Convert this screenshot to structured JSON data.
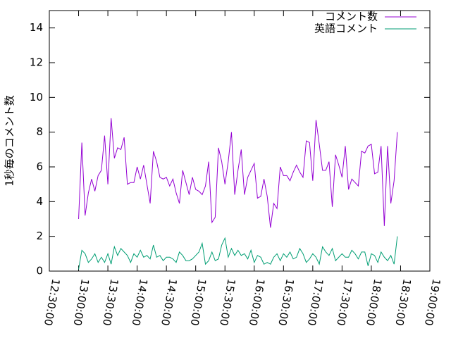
{
  "chart_data": {
    "type": "line",
    "ylabel": "1秒毎のコメント数",
    "x": [
      "13:00:00",
      "13:03:20",
      "13:06:40",
      "13:10:00",
      "13:13:20",
      "13:16:40",
      "13:20:00",
      "13:23:20",
      "13:26:40",
      "13:30:00",
      "13:33:20",
      "13:36:40",
      "13:40:00",
      "13:43:20",
      "13:46:40",
      "13:50:00",
      "13:53:20",
      "13:56:40",
      "14:00:00",
      "14:03:20",
      "14:06:40",
      "14:10:00",
      "14:13:20",
      "14:16:40",
      "14:20:00",
      "14:23:20",
      "14:26:40",
      "14:30:00",
      "14:33:20",
      "14:36:40",
      "14:40:00",
      "14:43:20",
      "14:46:40",
      "14:50:00",
      "14:53:20",
      "14:56:40",
      "15:00:00",
      "15:03:20",
      "15:06:40",
      "15:10:00",
      "15:13:20",
      "15:16:40",
      "15:20:00",
      "15:23:20",
      "15:26:40",
      "15:30:00",
      "15:33:20",
      "15:36:40",
      "15:40:00",
      "15:43:20",
      "15:46:40",
      "15:50:00",
      "15:53:20",
      "15:56:40",
      "16:00:00",
      "16:03:20",
      "16:06:40",
      "16:10:00",
      "16:13:20",
      "16:16:40",
      "16:20:00",
      "16:23:20",
      "16:26:40",
      "16:30:00",
      "16:33:20",
      "16:36:40",
      "16:40:00",
      "16:43:20",
      "16:46:40",
      "16:50:00",
      "16:53:20",
      "16:56:40",
      "17:00:00",
      "17:03:20",
      "17:06:40",
      "17:10:00",
      "17:13:20",
      "17:16:40",
      "17:20:00",
      "17:23:20",
      "17:26:40",
      "17:30:00",
      "17:33:20",
      "17:36:40",
      "17:40:00",
      "17:43:20",
      "17:46:40",
      "17:50:00",
      "17:53:20",
      "17:56:40",
      "18:00:00",
      "18:03:20",
      "18:06:40",
      "18:10:00",
      "18:13:20",
      "18:16:40",
      "18:20:00",
      "18:23:20",
      "18:26:40"
    ],
    "series": [
      {
        "name": "コメント数",
        "color": "#9400d3",
        "values": [
          3.0,
          7.4,
          3.2,
          4.5,
          5.3,
          4.6,
          5.5,
          5.8,
          7.8,
          5.0,
          8.8,
          6.5,
          7.1,
          7.0,
          7.7,
          5.0,
          5.1,
          5.1,
          6.0,
          5.3,
          6.1,
          5.0,
          3.9,
          6.9,
          6.3,
          5.4,
          5.3,
          5.4,
          4.9,
          5.3,
          4.5,
          3.9,
          5.8,
          5.1,
          4.4,
          5.4,
          4.7,
          4.6,
          4.4,
          4.9,
          6.3,
          2.8,
          3.1,
          7.1,
          6.3,
          5.0,
          6.3,
          8.0,
          4.4,
          5.8,
          7.0,
          4.4,
          5.4,
          5.8,
          6.2,
          4.2,
          4.3,
          5.3,
          4.3,
          2.5,
          3.9,
          3.6,
          6.0,
          5.5,
          5.5,
          5.2,
          5.7,
          6.1,
          5.7,
          5.4,
          7.5,
          7.4,
          5.2,
          8.7,
          7.3,
          5.8,
          5.8,
          6.3,
          3.7,
          6.7,
          6.1,
          5.4,
          7.2,
          4.7,
          5.3,
          5.1,
          4.9,
          6.9,
          6.8,
          7.2,
          7.3,
          5.6,
          5.7,
          7.2,
          2.6,
          7.2,
          3.9,
          5.2,
          8.0
        ]
      },
      {
        "name": "英語コメント",
        "color": "#009e73",
        "values": [
          0.1,
          1.2,
          1.0,
          0.5,
          0.7,
          1.0,
          0.5,
          0.8,
          0.5,
          1.0,
          0.4,
          1.4,
          0.9,
          1.3,
          1.1,
          0.9,
          0.5,
          1.0,
          0.8,
          1.2,
          0.8,
          0.9,
          0.7,
          1.5,
          0.8,
          0.9,
          0.6,
          0.8,
          0.8,
          0.7,
          0.5,
          1.1,
          0.9,
          0.6,
          0.6,
          0.7,
          0.9,
          1.1,
          1.6,
          0.4,
          0.6,
          1.1,
          0.6,
          0.7,
          1.5,
          1.9,
          0.8,
          1.3,
          0.9,
          1.2,
          0.9,
          1.0,
          0.7,
          1.2,
          0.5,
          0.9,
          0.8,
          0.4,
          0.5,
          0.4,
          0.8,
          1.0,
          0.6,
          1.0,
          0.8,
          1.1,
          0.7,
          0.8,
          1.3,
          1.0,
          0.5,
          0.7,
          1.0,
          0.8,
          0.4,
          1.4,
          1.1,
          0.9,
          1.3,
          0.6,
          0.8,
          1.0,
          0.8,
          0.8,
          1.2,
          1.0,
          0.7,
          1.1,
          1.1,
          0.3,
          1.0,
          0.9,
          0.5,
          1.1,
          0.8,
          0.6,
          0.9,
          0.4,
          2.0
        ]
      }
    ],
    "xlim": [
      "12:30:00",
      "19:00:00"
    ],
    "xticks": [
      "12:30:00",
      "13:00:00",
      "13:30:00",
      "14:00:00",
      "14:30:00",
      "15:00:00",
      "15:30:00",
      "16:00:00",
      "16:30:00",
      "17:00:00",
      "17:30:00",
      "18:00:00",
      "18:30:00",
      "19:00:00"
    ],
    "ylim": [
      0,
      15
    ],
    "yticks": [
      0,
      2,
      4,
      6,
      8,
      10,
      12,
      14
    ],
    "grid": false,
    "legend": "top-right"
  }
}
